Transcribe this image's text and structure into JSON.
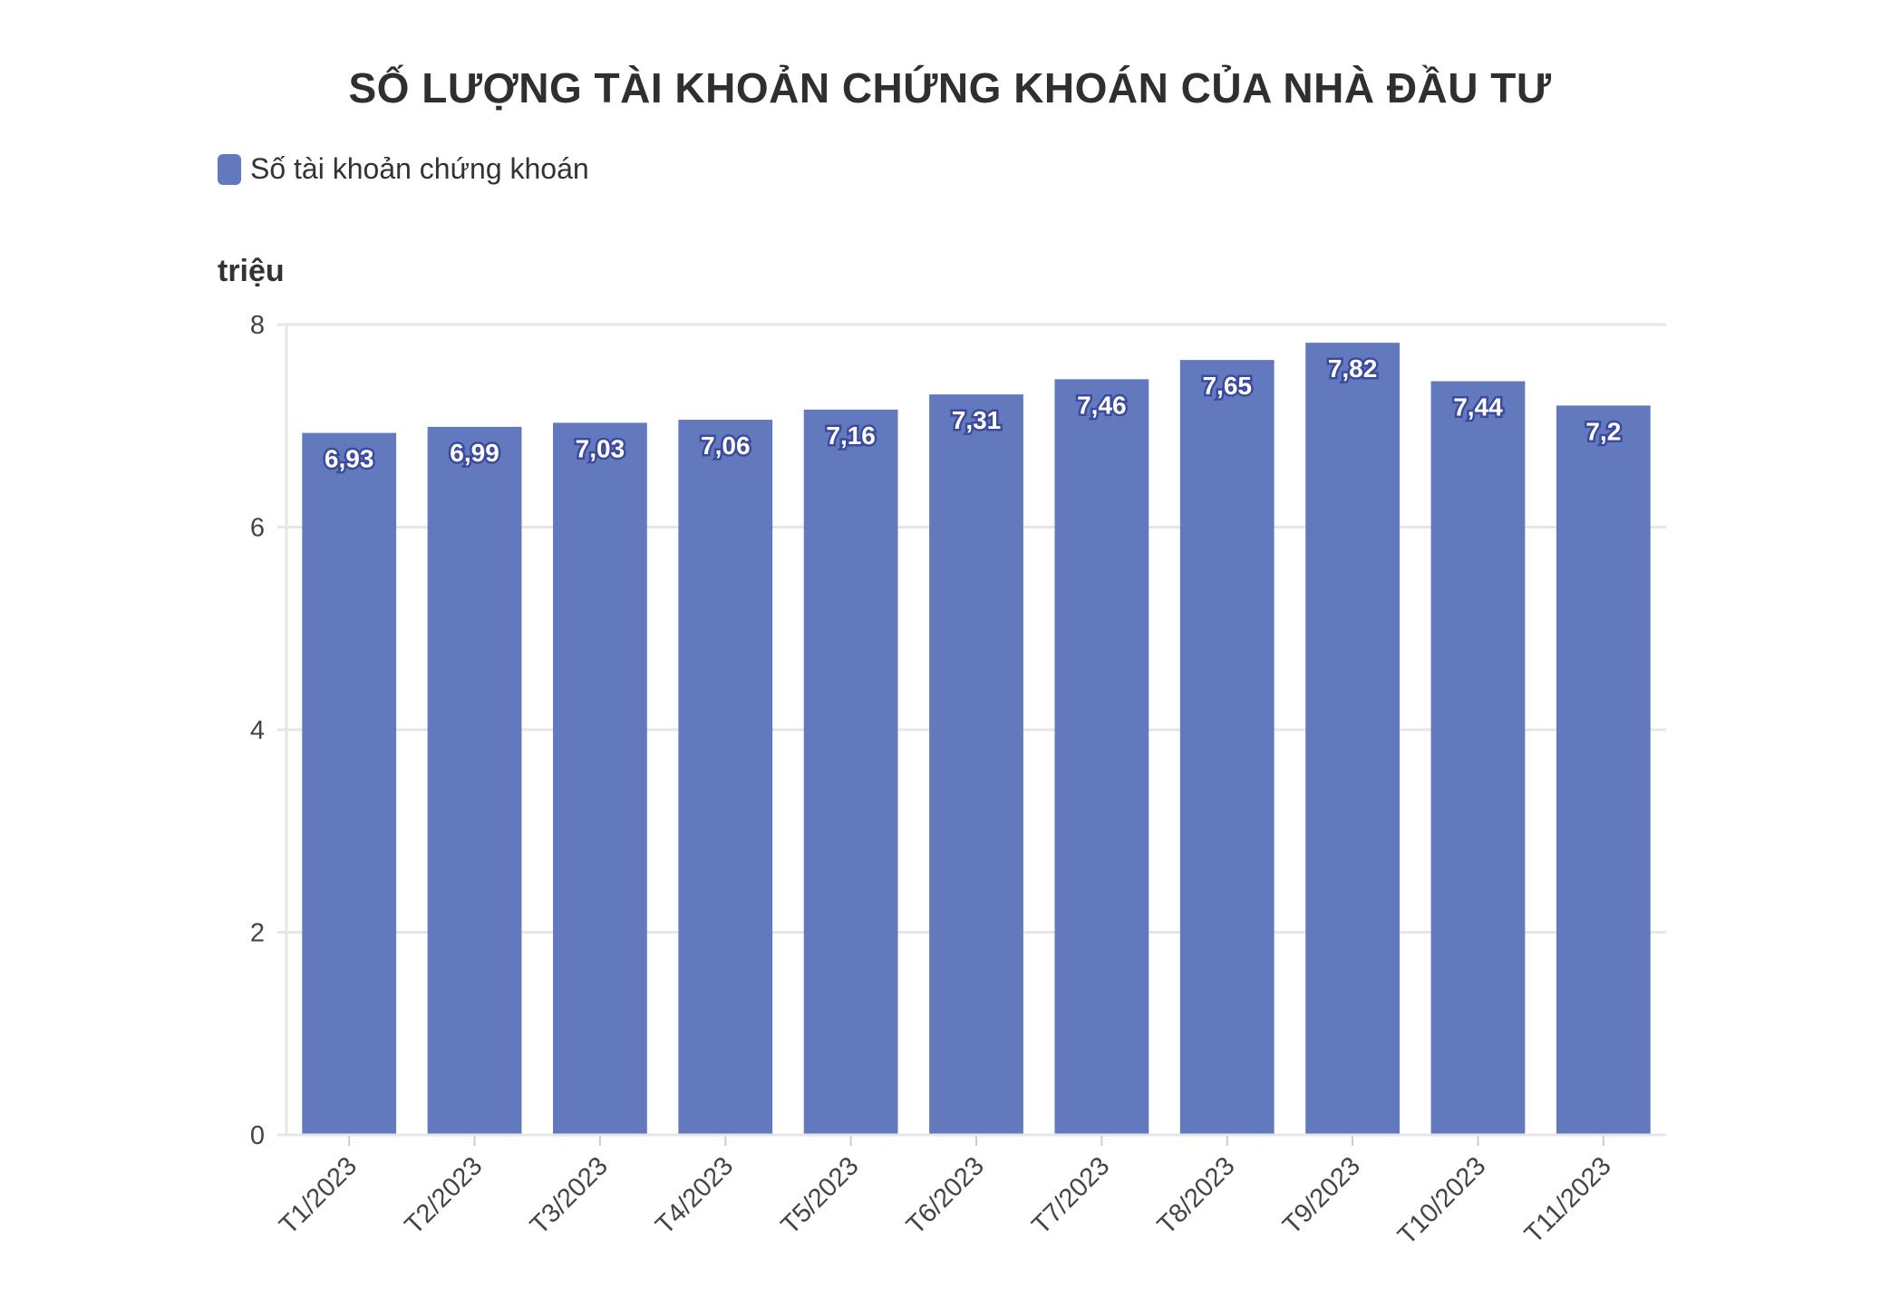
{
  "chart_data": {
    "type": "bar",
    "title": "SỐ LƯỢNG TÀI KHOẢN CHỨNG KHOÁN CỦA NHÀ ĐẦU TƯ",
    "ylabel": "triệu",
    "xlabel": "",
    "categories": [
      "T1/2023",
      "T2/2023",
      "T3/2023",
      "T4/2023",
      "T5/2023",
      "T6/2023",
      "T7/2023",
      "T8/2023",
      "T9/2023",
      "T10/2023",
      "T11/2023"
    ],
    "series": [
      {
        "name": "Số tài khoản chứng khoán",
        "values": [
          6.93,
          6.99,
          7.03,
          7.06,
          7.16,
          7.31,
          7.46,
          7.65,
          7.82,
          7.44,
          7.2
        ],
        "labels": [
          "6,93",
          "6,99",
          "7,03",
          "7,06",
          "7,16",
          "7,31",
          "7,46",
          "7,65",
          "7,82",
          "7,44",
          "7,2"
        ]
      }
    ],
    "ylim": [
      0,
      8
    ],
    "yticks": [
      0,
      2,
      4,
      6,
      8
    ],
    "grid": true,
    "legend_position": "top-left",
    "bar_color": "#6279be",
    "grid_color": "#e6e6e6"
  }
}
